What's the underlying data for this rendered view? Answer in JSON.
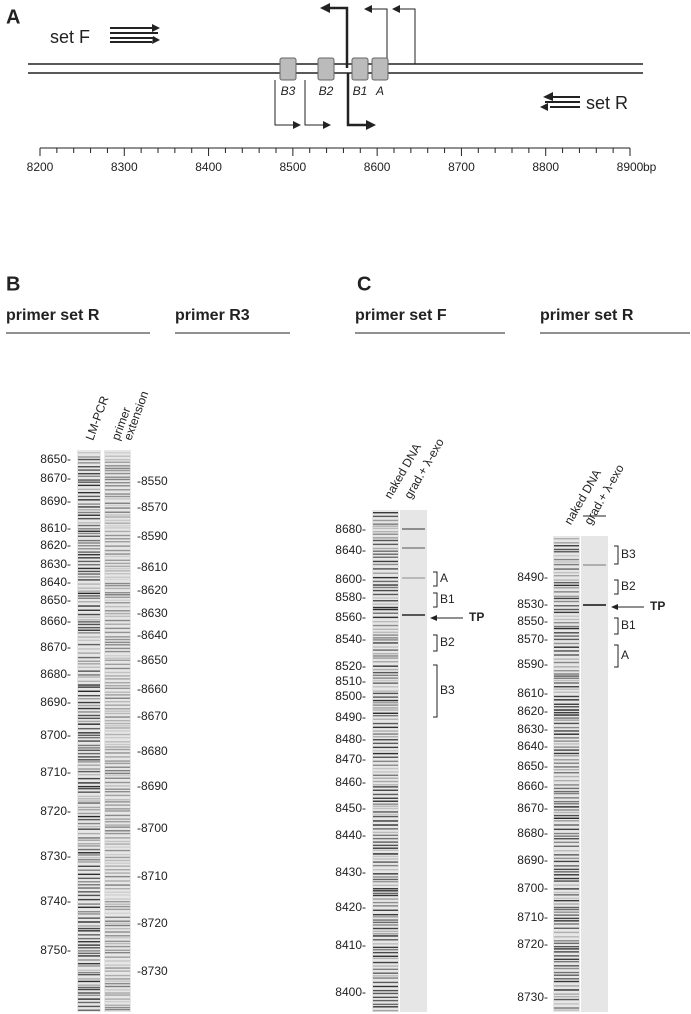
{
  "panel_a": {
    "label": "A",
    "set_f": "set F",
    "set_r": "set R",
    "boxes": [
      "B3",
      "B2",
      "B1",
      "A"
    ],
    "axis_ticks": [
      8200,
      8300,
      8400,
      8500,
      8600,
      8700,
      8800,
      8900
    ],
    "axis_unit": "bp"
  },
  "panel_b": {
    "label": "B",
    "headers": [
      "primer set R",
      "primer R3"
    ],
    "lanes": [
      [
        "LM-PCR"
      ],
      [
        "primer",
        "extension"
      ]
    ],
    "left_markers": [
      "8650-",
      "8670-",
      "8690-",
      "8610-",
      "8620-",
      "8630-",
      "8640-",
      "8650-",
      "8660-",
      "8670-",
      "8680-",
      "8690-",
      "8700-",
      "8710-",
      "8720-",
      "8730-",
      "8740-",
      "8750-"
    ],
    "right_markers": [
      "-8550",
      "-8570",
      "-8590",
      "-8610",
      "-8620",
      "-8630",
      "-8640",
      "-8650",
      "-8660",
      "-8670",
      "-8680",
      "-8690",
      "-8700",
      "-8710",
      "-8720",
      "-8730"
    ]
  },
  "panel_c": {
    "label": "C",
    "gels": [
      {
        "header": "primer set F",
        "lanes": [
          "naked DNA",
          "grad.+ λ-exo"
        ],
        "markers": [
          "8680-",
          "8640-",
          "8600-",
          "8580-",
          "8560-",
          "8540-",
          "8520-",
          "8510-",
          "8500-",
          "8490-",
          "8480-",
          "8470-",
          "8460-",
          "8450-",
          "8440-",
          "8430-",
          "8420-",
          "8410-",
          "8400-"
        ],
        "annotations": [
          "A",
          "B1",
          "TP",
          "B2",
          "B3"
        ]
      },
      {
        "header": "primer set R",
        "lanes": [
          "naked DNA",
          "grad.+ λ-exo"
        ],
        "markers": [
          "8490-",
          "8530-",
          "8550-",
          "8570-",
          "8590-",
          "8610-",
          "8620-",
          "8630-",
          "8640-",
          "8650-",
          "8660-",
          "8670-",
          "8680-",
          "8690-",
          "8700-",
          "8710-",
          "8720-",
          "8730-"
        ],
        "annotations": [
          "B3",
          "B2",
          "TP",
          "B1",
          "A"
        ]
      }
    ]
  }
}
